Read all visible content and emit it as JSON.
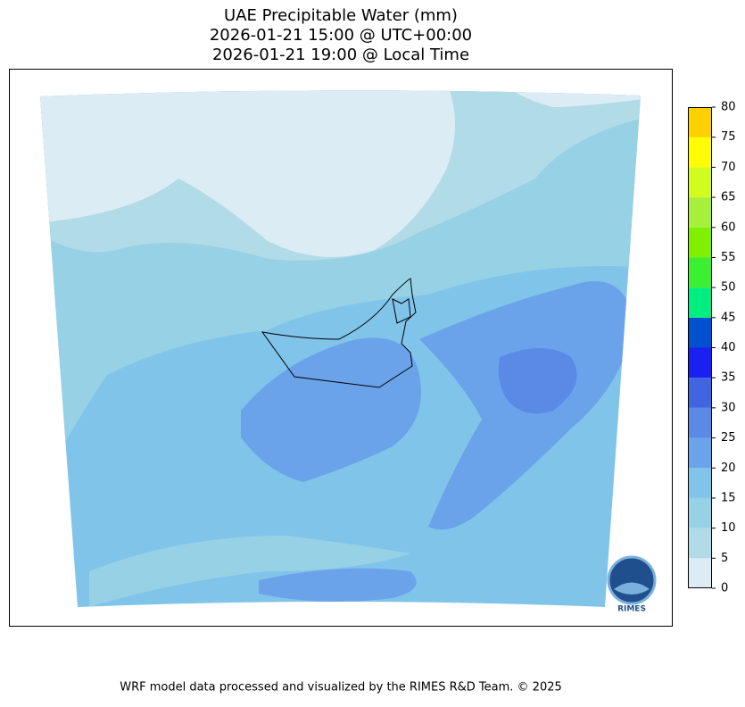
{
  "title": [
    "UAE Precipitable Water (mm)",
    "2026-01-21 15:00 @ UTC+00:00",
    "2026-01-21 19:00 @ Local Time"
  ],
  "colorbar": {
    "ticks": [
      0,
      5,
      10,
      15,
      20,
      25,
      30,
      35,
      40,
      45,
      50,
      55,
      60,
      65,
      70,
      75,
      80
    ],
    "colors": [
      "#dbecf4",
      "#b1dbe6",
      "#97d1e5",
      "#81c4ea",
      "#6ba3ea",
      "#5a8ae6",
      "#3f66df",
      "#1a20f2",
      "#0050cf",
      "#00ee80",
      "#3cef30",
      "#7ef000",
      "#a6f03c",
      "#d2fb1e",
      "#fffd00",
      "#ffd000"
    ]
  },
  "footer": "WRF model data processed and visualized by the RIMES R&D Team. © 2025",
  "logo": {
    "text": "RIMES"
  }
}
